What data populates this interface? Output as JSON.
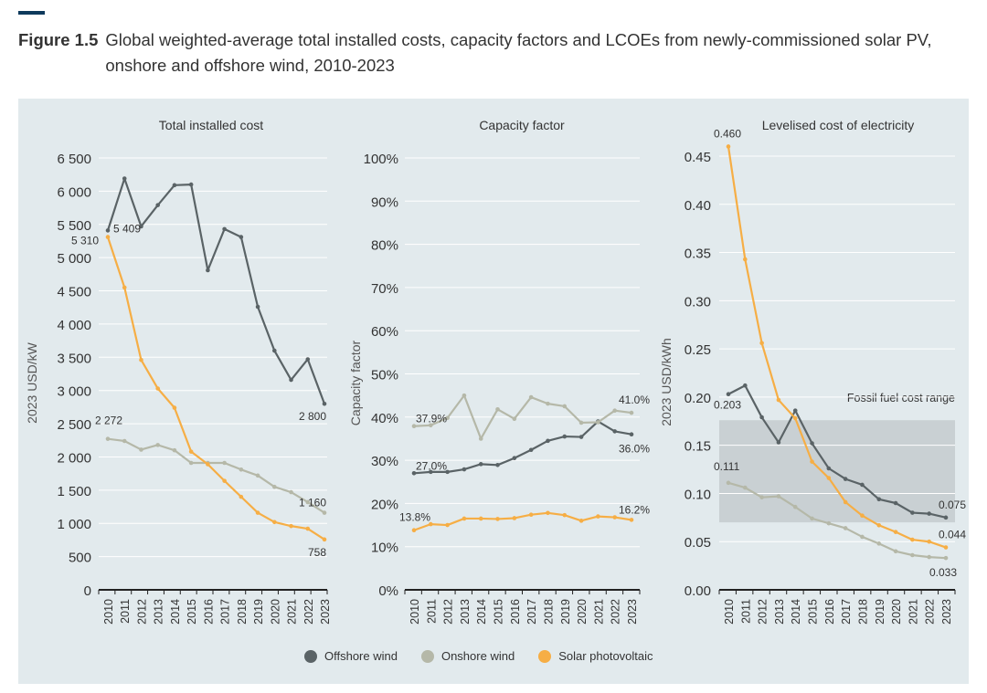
{
  "figure": {
    "label": "Figure 1.5",
    "title": "Global weighted-average total installed costs, capacity factors and LCOEs from newly-commissioned solar PV, onshore and offshore wind, 2010-2023"
  },
  "colors": {
    "offshore": "#5a6366",
    "onshore": "#b5b8a8",
    "solar": "#f6ae45",
    "accent": "#0e3a5c",
    "panel_bg": "#e2eaed",
    "fossil_band": "#c9d0d3"
  },
  "legend": [
    {
      "key": "offshore",
      "name": "Offshore wind"
    },
    {
      "key": "onshore",
      "name": "Onshore wind"
    },
    {
      "key": "solar",
      "name": "Solar photovoltaic"
    }
  ],
  "chart_data": [
    {
      "type": "line",
      "title": "Total installed cost",
      "ylabel": "2023 USD/kW",
      "ylim": [
        0,
        6500
      ],
      "yticks": [
        0,
        500,
        1000,
        1500,
        2000,
        2500,
        3000,
        3500,
        4000,
        4500,
        5000,
        5500,
        6000,
        6500
      ],
      "ytick_labels": [
        "0",
        "500",
        "1 000",
        "1 500",
        "2 000",
        "2 500",
        "3 000",
        "3 500",
        "4 000",
        "4 500",
        "5 000",
        "5 500",
        "6 000",
        "6 500"
      ],
      "grid": true,
      "x": [
        "2010",
        "2011",
        "2012",
        "2013",
        "2014",
        "2015",
        "2016",
        "2017",
        "2018",
        "2019",
        "2020",
        "2021",
        "2022",
        "2023"
      ],
      "series": [
        {
          "key": "offshore",
          "values": [
            5409,
            6190,
            5470,
            5790,
            6090,
            6100,
            4810,
            5430,
            5310,
            4260,
            3600,
            3160,
            3470,
            2800
          ]
        },
        {
          "key": "onshore",
          "values": [
            2272,
            2240,
            2110,
            2180,
            2100,
            1910,
            1910,
            1910,
            1810,
            1720,
            1550,
            1470,
            1320,
            1160
          ]
        },
        {
          "key": "solar",
          "values": [
            5310,
            4550,
            3460,
            3030,
            2740,
            2080,
            1890,
            1640,
            1400,
            1160,
            1020,
            960,
            920,
            758
          ]
        }
      ],
      "annotations": [
        {
          "series": "offshore",
          "year": "2010",
          "text": "5 409"
        },
        {
          "series": "solar",
          "year": "2010",
          "text": "5 310"
        },
        {
          "series": "onshore",
          "year": "2010",
          "text": "2 272"
        },
        {
          "series": "offshore",
          "year": "2023",
          "text": "2 800"
        },
        {
          "series": "onshore",
          "year": "2023",
          "text": "1 160"
        },
        {
          "series": "solar",
          "year": "2023",
          "text": "758"
        }
      ]
    },
    {
      "type": "line",
      "title": "Capacity factor",
      "ylabel": "Capacity factor",
      "ylim": [
        0,
        100
      ],
      "yticks": [
        0,
        10,
        20,
        30,
        40,
        50,
        60,
        70,
        80,
        90,
        100
      ],
      "ytick_labels": [
        "0%",
        "10%",
        "20%",
        "30%",
        "40%",
        "50%",
        "60%",
        "70%",
        "80%",
        "90%",
        "100%"
      ],
      "grid": true,
      "x": [
        "2010",
        "2011",
        "2012",
        "2013",
        "2014",
        "2015",
        "2016",
        "2017",
        "2018",
        "2019",
        "2020",
        "2021",
        "2022",
        "2023"
      ],
      "series": [
        {
          "key": "offshore",
          "values": [
            27.0,
            27.3,
            27.3,
            27.9,
            29.1,
            28.9,
            30.5,
            32.4,
            34.5,
            35.5,
            35.4,
            39.0,
            36.7,
            36.0
          ]
        },
        {
          "key": "onshore",
          "values": [
            37.9,
            38.1,
            39.8,
            45.0,
            35.0,
            41.8,
            39.6,
            44.6,
            43.1,
            42.5,
            38.7,
            38.8,
            41.5,
            41.0
          ]
        },
        {
          "key": "solar",
          "values": [
            13.8,
            15.2,
            15.0,
            16.5,
            16.5,
            16.4,
            16.6,
            17.4,
            17.8,
            17.3,
            16.0,
            17.0,
            16.8,
            16.2
          ]
        }
      ],
      "annotations": [
        {
          "series": "onshore",
          "year": "2010",
          "text": "37.9%"
        },
        {
          "series": "offshore",
          "year": "2010",
          "text": "27.0%"
        },
        {
          "series": "solar",
          "year": "2010",
          "text": "13.8%"
        },
        {
          "series": "onshore",
          "year": "2023",
          "text": "41.0%"
        },
        {
          "series": "offshore",
          "year": "2023",
          "text": "36.0%"
        },
        {
          "series": "solar",
          "year": "2023",
          "text": "16.2%"
        }
      ]
    },
    {
      "type": "line",
      "title": "Levelised cost of electricity",
      "ylabel": "2023 USD/kWh",
      "ylim": [
        0,
        0.46
      ],
      "yticks": [
        0,
        0.05,
        0.1,
        0.15,
        0.2,
        0.25,
        0.3,
        0.35,
        0.4,
        0.45
      ],
      "ytick_labels": [
        "0.00",
        "0.05",
        "0.10",
        "0.15",
        "0.20",
        "0.25",
        "0.30",
        "0.35",
        "0.40",
        "0.45"
      ],
      "grid": true,
      "x": [
        "2010",
        "2011",
        "2012",
        "2013",
        "2014",
        "2015",
        "2016",
        "2017",
        "2018",
        "2019",
        "2020",
        "2021",
        "2022",
        "2023"
      ],
      "band": {
        "label": "Fossil fuel cost range",
        "from": 0.07,
        "to": 0.176
      },
      "series": [
        {
          "key": "offshore",
          "values": [
            0.203,
            0.212,
            0.179,
            0.153,
            0.186,
            0.152,
            0.126,
            0.115,
            0.109,
            0.094,
            0.09,
            0.08,
            0.079,
            0.075
          ]
        },
        {
          "key": "onshore",
          "values": [
            0.111,
            0.106,
            0.096,
            0.097,
            0.086,
            0.074,
            0.069,
            0.064,
            0.055,
            0.048,
            0.04,
            0.036,
            0.034,
            0.033
          ]
        },
        {
          "key": "solar",
          "values": [
            0.46,
            0.343,
            0.256,
            0.197,
            0.178,
            0.133,
            0.116,
            0.091,
            0.077,
            0.067,
            0.06,
            0.052,
            0.05,
            0.044
          ]
        }
      ],
      "annotations": [
        {
          "series": "solar",
          "year": "2010",
          "text": "0.460"
        },
        {
          "series": "offshore",
          "year": "2010",
          "text": "0.203"
        },
        {
          "series": "onshore",
          "year": "2010",
          "text": "0.111"
        },
        {
          "series": "offshore",
          "year": "2023",
          "text": "0.075"
        },
        {
          "series": "solar",
          "year": "2023",
          "text": "0.044"
        },
        {
          "series": "onshore",
          "year": "2023",
          "text": "0.033"
        }
      ]
    }
  ]
}
